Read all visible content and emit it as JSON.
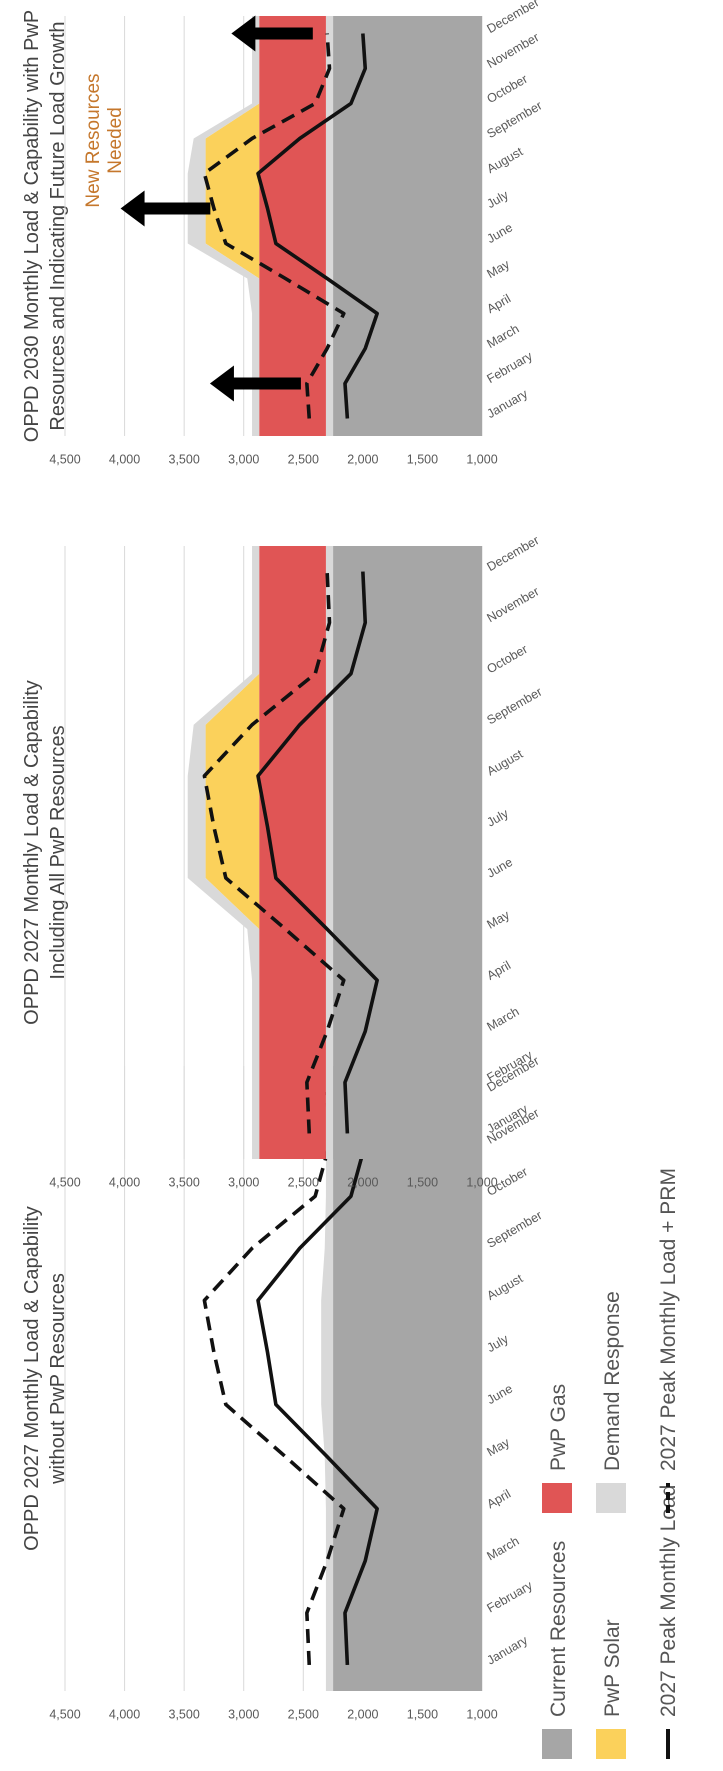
{
  "chart_data": [
    {
      "type": "area",
      "title": [
        "OPPD 2027 Monthly Load & Capability",
        "without PwP Resources"
      ],
      "categories": [
        "January",
        "February",
        "March",
        "April",
        "May",
        "June",
        "July",
        "August",
        "September",
        "October",
        "November",
        "December"
      ],
      "yticks": [
        "1,000",
        "1,500",
        "2,000",
        "2,500",
        "3,000",
        "3,500",
        "4,000",
        "4,500"
      ],
      "ylim": [
        1000,
        4500
      ],
      "stacked_areas": [
        {
          "key": "current",
          "values": [
            2250,
            2250,
            2250,
            2250,
            2250,
            2250,
            2250,
            2250,
            2250,
            2250,
            2250,
            2250
          ]
        },
        {
          "key": "dr",
          "values": [
            60,
            60,
            60,
            60,
            70,
            100,
            100,
            100,
            70,
            60,
            60,
            60
          ]
        }
      ],
      "lines": [
        {
          "key": "peak",
          "values": [
            2130,
            2150,
            1980,
            1880,
            2300,
            2730,
            2800,
            2880,
            2530,
            2100,
            1980,
            2000
          ]
        },
        {
          "key": "peak_prm",
          "values": [
            2450,
            2470,
            2300,
            2160,
            2650,
            3150,
            3250,
            3330,
            2930,
            2400,
            2280,
            2300
          ]
        }
      ],
      "annotations": []
    },
    {
      "type": "area",
      "title": [
        "OPPD 2027 Monthly Load & Capability",
        "Including All PwP Resources"
      ],
      "categories": [
        "January",
        "February",
        "March",
        "April",
        "May",
        "June",
        "July",
        "August",
        "September",
        "October",
        "November",
        "December"
      ],
      "yticks": [
        "1,000",
        "1,500",
        "2,000",
        "2,500",
        "3,000",
        "3,500",
        "4,000",
        "4,500"
      ],
      "ylim": [
        1000,
        4500
      ],
      "stacked_areas": [
        {
          "key": "current",
          "values": [
            2250,
            2250,
            2250,
            2250,
            2250,
            2250,
            2250,
            2250,
            2250,
            2250,
            2250,
            2250
          ]
        },
        {
          "key": "dr",
          "values": [
            60,
            60,
            60,
            60,
            60,
            60,
            60,
            60,
            60,
            60,
            60,
            60
          ]
        },
        {
          "key": "gas",
          "values": [
            560,
            560,
            560,
            560,
            560,
            560,
            560,
            560,
            560,
            560,
            560,
            560
          ]
        },
        {
          "key": "solar",
          "values": [
            0,
            0,
            0,
            0,
            0,
            450,
            450,
            450,
            450,
            0,
            0,
            0
          ]
        },
        {
          "key": "dr",
          "values": [
            60,
            60,
            60,
            60,
            100,
            150,
            150,
            150,
            100,
            60,
            60,
            60
          ]
        }
      ],
      "lines": [
        {
          "key": "peak",
          "values": [
            2130,
            2150,
            1980,
            1880,
            2300,
            2730,
            2800,
            2880,
            2530,
            2100,
            1980,
            2000
          ]
        },
        {
          "key": "peak_prm",
          "values": [
            2450,
            2470,
            2300,
            2160,
            2650,
            3150,
            3250,
            3330,
            2930,
            2400,
            2280,
            2300
          ]
        }
      ],
      "annotations": []
    },
    {
      "type": "area",
      "title": [
        "OPPD 2030 Monthly Load & Capability with PwP",
        "Resources and Indicating Future Load Growth"
      ],
      "categories": [
        "January",
        "February",
        "March",
        "April",
        "May",
        "June",
        "July",
        "August",
        "September",
        "October",
        "November",
        "December"
      ],
      "yticks": [
        "1,000",
        "1,500",
        "2,000",
        "2,500",
        "3,000",
        "3,500",
        "4,000",
        "4,500"
      ],
      "ylim": [
        1000,
        4500
      ],
      "stacked_areas": [
        {
          "key": "current",
          "values": [
            2250,
            2250,
            2250,
            2250,
            2250,
            2250,
            2250,
            2250,
            2250,
            2250,
            2250,
            2250
          ]
        },
        {
          "key": "dr",
          "values": [
            60,
            60,
            60,
            60,
            60,
            60,
            60,
            60,
            60,
            60,
            60,
            60
          ]
        },
        {
          "key": "gas",
          "values": [
            560,
            560,
            560,
            560,
            560,
            560,
            560,
            560,
            560,
            560,
            560,
            560
          ]
        },
        {
          "key": "solar",
          "values": [
            0,
            0,
            0,
            0,
            0,
            450,
            450,
            450,
            450,
            0,
            0,
            0
          ]
        },
        {
          "key": "dr",
          "values": [
            60,
            60,
            60,
            60,
            100,
            150,
            150,
            150,
            100,
            60,
            60,
            60
          ]
        }
      ],
      "lines": [
        {
          "key": "peak",
          "values": [
            2130,
            2150,
            1980,
            1880,
            2300,
            2730,
            2800,
            2880,
            2530,
            2100,
            1980,
            2000
          ]
        },
        {
          "key": "peak_prm",
          "values": [
            2450,
            2470,
            2300,
            2160,
            2650,
            3150,
            3250,
            3330,
            2930,
            2400,
            2280,
            2300
          ]
        }
      ],
      "annotations": [
        "New Resources",
        "Needed"
      ],
      "arrows": [
        {
          "month": "February",
          "from": 2520,
          "to": 3250
        },
        {
          "month": "July",
          "from": 3280,
          "to": 4000
        },
        {
          "month": "December",
          "from": 2420,
          "to": 3070
        }
      ]
    }
  ],
  "legend": [
    {
      "key": "current",
      "label": "Current Resources",
      "symbol": "box"
    },
    {
      "key": "solar",
      "label": "PwP Solar",
      "symbol": "box"
    },
    {
      "key": "peak",
      "label": "2027 Peak Monthly Load",
      "symbol": "solid"
    },
    {
      "key": "gas",
      "label": "PwP Gas",
      "symbol": "box"
    },
    {
      "key": "dr",
      "label": "Demand Response",
      "symbol": "box"
    },
    {
      "key": "peak_prm",
      "label": "2027 Peak Monthly Load + PRM",
      "symbol": "dash"
    }
  ],
  "colors": {
    "current": "#a6a6a6",
    "dr": "#d9d9d9",
    "gas": "#e05555",
    "solar": "#fbd15b",
    "line": "#111111",
    "grid": "#d9d9d9",
    "annotation": "#c5772c"
  }
}
